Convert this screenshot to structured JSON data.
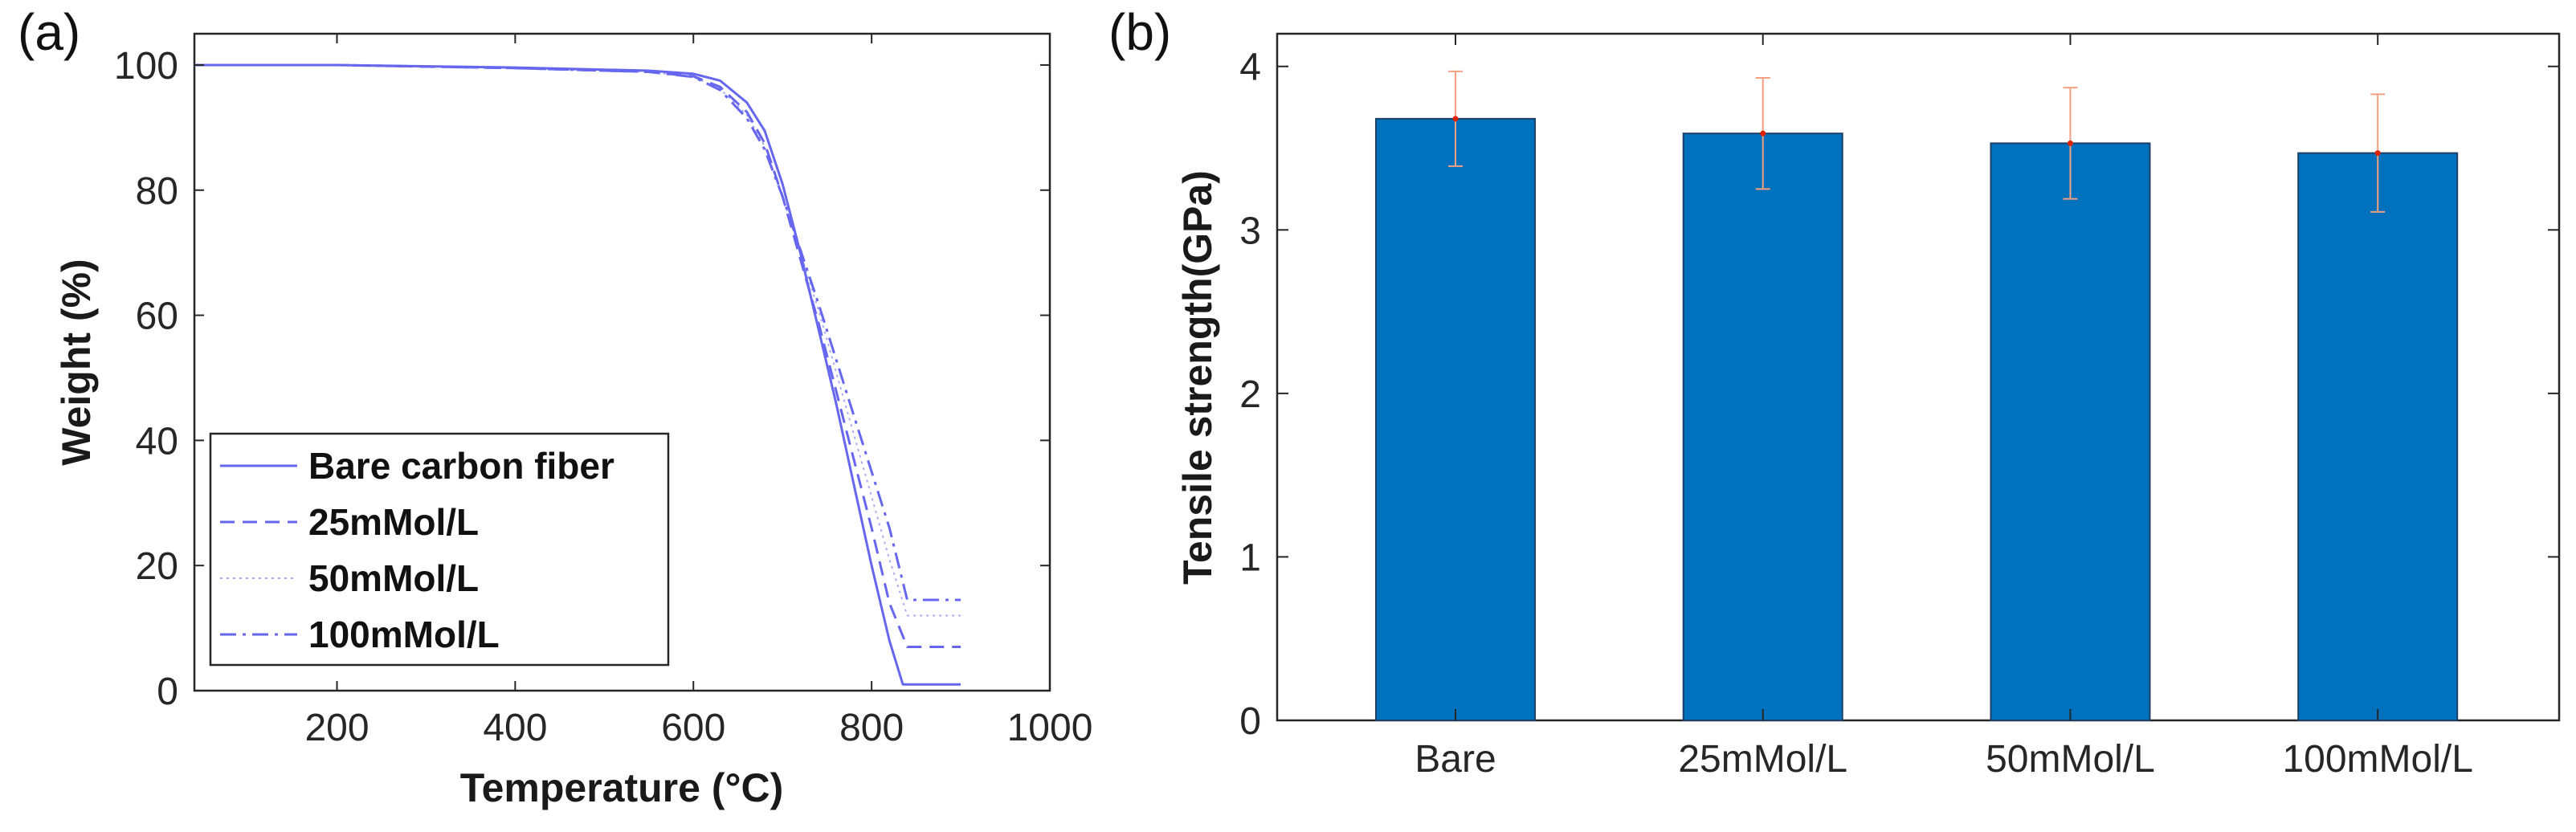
{
  "panels": {
    "a_label": "(a)",
    "b_label": "(b)"
  },
  "colors": {
    "tga_line": "#6666ee",
    "bar_fill": "#0072bd",
    "bar_edge": "#1f3f66",
    "error_bar": "#f4a080",
    "error_center": "#dd2200",
    "axis": "#262626"
  },
  "chart_data": [
    {
      "type": "line",
      "title": "",
      "xlabel": "Temperature (°C)",
      "ylabel": "Weight (%)",
      "xlim": [
        40,
        1000
      ],
      "ylim": [
        0,
        105
      ],
      "xticks": [
        200,
        400,
        600,
        800,
        1000
      ],
      "yticks": [
        0,
        20,
        40,
        60,
        80,
        100
      ],
      "legend_position": "bottom-left",
      "series": [
        {
          "name": "Bare carbon fiber",
          "style": "solid",
          "x": [
            40,
            200,
            400,
            550,
            600,
            630,
            660,
            680,
            700,
            720,
            740,
            760,
            780,
            800,
            820,
            835,
            850,
            900
          ],
          "y": [
            100,
            100,
            99.6,
            99.1,
            98.6,
            97.5,
            94,
            89.5,
            81,
            70,
            58,
            46,
            33,
            20,
            8,
            1,
            1,
            1
          ]
        },
        {
          "name": "25mMol/L",
          "style": "dashed",
          "x": [
            40,
            200,
            400,
            550,
            600,
            630,
            660,
            680,
            700,
            720,
            740,
            760,
            780,
            800,
            820,
            840,
            850,
            900
          ],
          "y": [
            100,
            100,
            99.5,
            98.9,
            98.2,
            96.5,
            92.5,
            87.5,
            79,
            69,
            59,
            48,
            37,
            26,
            14,
            7,
            7,
            7
          ]
        },
        {
          "name": "50mMol/L",
          "style": "dotted",
          "x": [
            40,
            200,
            400,
            550,
            600,
            630,
            660,
            680,
            700,
            720,
            740,
            760,
            780,
            800,
            820,
            840,
            850,
            900
          ],
          "y": [
            100,
            100,
            99.5,
            98.9,
            98.1,
            96.2,
            92,
            87,
            79,
            70,
            61,
            51,
            41,
            31,
            21,
            12,
            12,
            12
          ]
        },
        {
          "name": "100mMol/L",
          "style": "dashdot",
          "x": [
            40,
            200,
            400,
            550,
            600,
            630,
            660,
            680,
            700,
            720,
            740,
            760,
            780,
            800,
            820,
            840,
            850,
            900
          ],
          "y": [
            100,
            100,
            99.5,
            98.9,
            98.1,
            96,
            91.5,
            86.5,
            79,
            70.5,
            62,
            53,
            44,
            35,
            26,
            14.5,
            14.5,
            14.5
          ]
        }
      ]
    },
    {
      "type": "bar",
      "title": "",
      "xlabel": "",
      "ylabel": "Tensile strength(GPa)",
      "ylim": [
        0,
        4.2
      ],
      "yticks": [
        0,
        1,
        2,
        3,
        4
      ],
      "categories": [
        "Bare",
        "25mMol/L",
        "50mMol/L",
        "100mMol/L"
      ],
      "values": [
        3.68,
        3.59,
        3.53,
        3.47
      ],
      "errors": [
        0.29,
        0.34,
        0.34,
        0.36
      ]
    }
  ]
}
